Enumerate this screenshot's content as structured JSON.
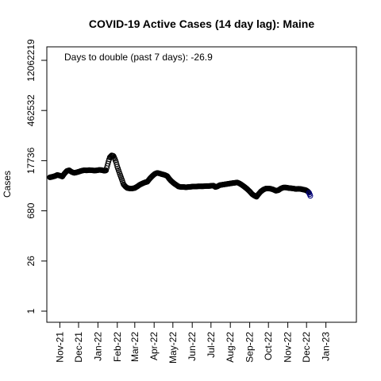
{
  "chart_data": {
    "type": "scatter",
    "title": "COVID-19 Active Cases (14 day lag): Maine",
    "xlabel": "",
    "ylabel": "Cases",
    "y_scale": "log",
    "y_ticks": [
      1,
      26,
      680,
      17736,
      462532,
      12062219
    ],
    "y_tick_labels": [
      "1",
      "26",
      "680",
      "17736",
      "462532",
      "12062219"
    ],
    "x_ticks": [
      "2021-11-01",
      "2021-12-01",
      "2022-01-01",
      "2022-02-01",
      "2022-03-01",
      "2022-04-01",
      "2022-05-01",
      "2022-06-01",
      "2022-07-01",
      "2022-08-01",
      "2022-09-01",
      "2022-10-01",
      "2022-11-01",
      "2022-12-01",
      "2023-01-01"
    ],
    "x_tick_labels": [
      "Nov-21",
      "Dec-21",
      "Jan-22",
      "Feb-22",
      "Mar-22",
      "Apr-22",
      "May-22",
      "Jun-22",
      "Jul-22",
      "Aug-22",
      "Sep-22",
      "Oct-22",
      "Nov-22",
      "Dec-22",
      "Jan-23"
    ],
    "xlim": [
      "2021-10-15",
      "2023-02-15"
    ],
    "annotation": "Days to double (past 7 days): -26.9",
    "grid": false,
    "marker": "open-circle",
    "colors": {
      "points": "#000000",
      "recent_points": "#000080",
      "axes": "#000000"
    },
    "series": [
      {
        "points": [
          [
            "2021-10-16",
            6000
          ],
          [
            "2021-10-20",
            6200
          ],
          [
            "2021-10-24",
            6500
          ],
          [
            "2021-10-28",
            7000
          ],
          [
            "2021-11-01",
            6700
          ],
          [
            "2021-11-05",
            6300
          ],
          [
            "2021-11-08",
            7500
          ],
          [
            "2021-11-12",
            9000
          ],
          [
            "2021-11-16",
            9500
          ],
          [
            "2021-11-20",
            8500
          ],
          [
            "2021-11-24",
            8000
          ],
          [
            "2021-11-28",
            8300
          ],
          [
            "2021-12-02",
            8700
          ],
          [
            "2021-12-06",
            9200
          ],
          [
            "2021-12-10",
            9500
          ],
          [
            "2021-12-14",
            9400
          ],
          [
            "2021-12-18",
            9600
          ],
          [
            "2021-12-22",
            9500
          ],
          [
            "2021-12-26",
            9300
          ],
          [
            "2021-12-30",
            9400
          ],
          [
            "2022-01-03",
            9700
          ],
          [
            "2022-01-07",
            9600
          ],
          [
            "2022-01-11",
            9200
          ],
          [
            "2022-01-14",
            9400
          ],
          [
            "2022-01-18",
            17000
          ],
          [
            "2022-01-20",
            22000
          ],
          [
            "2022-01-23",
            25000
          ],
          [
            "2022-01-26",
            24000
          ],
          [
            "2022-01-28",
            20000
          ],
          [
            "2022-01-30",
            16000
          ],
          [
            "2022-02-01",
            12000
          ],
          [
            "2022-02-03",
            9500
          ],
          [
            "2022-02-05",
            7500
          ],
          [
            "2022-02-07",
            6000
          ],
          [
            "2022-02-09",
            4800
          ],
          [
            "2022-02-11",
            3800
          ],
          [
            "2022-02-14",
            3300
          ],
          [
            "2022-02-17",
            3000
          ],
          [
            "2022-02-21",
            2900
          ],
          [
            "2022-02-25",
            2900
          ],
          [
            "2022-03-01",
            3000
          ],
          [
            "2022-03-05",
            3300
          ],
          [
            "2022-03-09",
            3700
          ],
          [
            "2022-03-13",
            4000
          ],
          [
            "2022-03-17",
            4300
          ],
          [
            "2022-03-21",
            4500
          ],
          [
            "2022-03-25",
            5500
          ],
          [
            "2022-03-29",
            6500
          ],
          [
            "2022-04-02",
            7500
          ],
          [
            "2022-04-06",
            8000
          ],
          [
            "2022-04-10",
            7700
          ],
          [
            "2022-04-14",
            7300
          ],
          [
            "2022-04-18",
            7000
          ],
          [
            "2022-04-22",
            6500
          ],
          [
            "2022-04-25",
            5500
          ],
          [
            "2022-04-28",
            4800
          ],
          [
            "2022-05-01",
            4300
          ],
          [
            "2022-05-04",
            3900
          ],
          [
            "2022-05-07",
            3600
          ],
          [
            "2022-05-10",
            3300
          ],
          [
            "2022-05-14",
            3200
          ],
          [
            "2022-05-18",
            3200
          ],
          [
            "2022-05-22",
            3150
          ],
          [
            "2022-05-26",
            3200
          ],
          [
            "2022-05-30",
            3250
          ],
          [
            "2022-06-03",
            3300
          ],
          [
            "2022-06-07",
            3300
          ],
          [
            "2022-06-11",
            3350
          ],
          [
            "2022-06-15",
            3350
          ],
          [
            "2022-06-19",
            3350
          ],
          [
            "2022-06-23",
            3400
          ],
          [
            "2022-06-27",
            3400
          ],
          [
            "2022-07-01",
            3450
          ],
          [
            "2022-07-05",
            3500
          ],
          [
            "2022-07-08",
            3200
          ],
          [
            "2022-07-11",
            3300
          ],
          [
            "2022-07-15",
            3600
          ],
          [
            "2022-07-19",
            3700
          ],
          [
            "2022-07-23",
            3800
          ],
          [
            "2022-07-27",
            3900
          ],
          [
            "2022-07-31",
            4000
          ],
          [
            "2022-08-04",
            4100
          ],
          [
            "2022-08-08",
            4200
          ],
          [
            "2022-08-12",
            4300
          ],
          [
            "2022-08-16",
            4000
          ],
          [
            "2022-08-20",
            3600
          ],
          [
            "2022-08-24",
            3200
          ],
          [
            "2022-08-28",
            2800
          ],
          [
            "2022-09-01",
            2400
          ],
          [
            "2022-09-05",
            2000
          ],
          [
            "2022-09-09",
            1800
          ],
          [
            "2022-09-12",
            1700
          ],
          [
            "2022-09-15",
            2000
          ],
          [
            "2022-09-19",
            2400
          ],
          [
            "2022-09-23",
            2700
          ],
          [
            "2022-09-27",
            2900
          ],
          [
            "2022-10-01",
            2900
          ],
          [
            "2022-10-05",
            2850
          ],
          [
            "2022-10-09",
            2700
          ],
          [
            "2022-10-13",
            2500
          ],
          [
            "2022-10-17",
            2600
          ],
          [
            "2022-10-21",
            2900
          ],
          [
            "2022-10-25",
            3100
          ],
          [
            "2022-10-29",
            3100
          ],
          [
            "2022-11-02",
            3000
          ],
          [
            "2022-11-06",
            2950
          ],
          [
            "2022-11-10",
            2900
          ],
          [
            "2022-11-14",
            2800
          ],
          [
            "2022-11-18",
            2850
          ],
          [
            "2022-11-22",
            2800
          ],
          [
            "2022-11-26",
            2700
          ],
          [
            "2022-11-30",
            2600
          ],
          [
            "2022-12-03",
            2400
          ],
          [
            "2022-12-05",
            2200
          ],
          [
            "2022-12-06",
            2000
          ],
          [
            "2022-12-07",
            1800
          ]
        ]
      }
    ]
  }
}
